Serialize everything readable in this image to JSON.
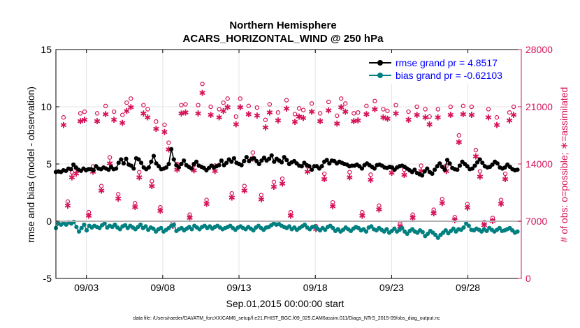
{
  "chart_data": {
    "type": "line",
    "title": "Northern Hemisphere",
    "subtitle": "ACARS_HORIZONTAL_WIND @ 250 hPa",
    "xlabel": "Sep.01,2015 00:00:00 start",
    "ylabel_left": "rmse and bias (model - observation)",
    "ylabel_right": "# of obs: o=possible; ∗=assimilated",
    "footnote": "data file: /Users/raeder/DAI/ATM_forcXX/CAM6_setup/f.e21.FHIST_BGC.f09_025.CAM6assim.011/Diags_NTrS_2015-09/obs_diag_output.nc",
    "x_range_days": [
      1,
      31.5
    ],
    "ylim_left": [
      -5,
      15
    ],
    "ylim_right": [
      0,
      28000
    ],
    "x_ticks": [
      {
        "day": 3,
        "label": "09/03"
      },
      {
        "day": 8,
        "label": "09/08"
      },
      {
        "day": 13,
        "label": "09/13"
      },
      {
        "day": 18,
        "label": "09/18"
      },
      {
        "day": 23,
        "label": "09/23"
      },
      {
        "day": 28,
        "label": "09/28"
      }
    ],
    "y_ticks_left": [
      "-5",
      "0",
      "5",
      "10",
      "15"
    ],
    "y_ticks_right": [
      "0",
      "7000",
      "14000",
      "21000",
      "28000"
    ],
    "grid": true,
    "legend_position": "top-right",
    "series": [
      {
        "name": "rmse grand pr = 4.8517",
        "color": "#000000",
        "axis": "left",
        "values": [
          4.3,
          4.35,
          4.3,
          4.45,
          4.4,
          4.6,
          4.55,
          4.95,
          4.7,
          4.5,
          4.4,
          4.6,
          4.45,
          4.55,
          4.55,
          4.45,
          4.8,
          4.6,
          4.55,
          4.7,
          4.6,
          4.5,
          4.75,
          4.55,
          4.6,
          5.1,
          5.4,
          5.05,
          5.45,
          4.95,
          4.85,
          4.6,
          5.5,
          5.4,
          5.1,
          4.7,
          4.55,
          4.7,
          5.2,
          5.7,
          5.05,
          4.8,
          4.55,
          4.6,
          4.7,
          5.0,
          6.3,
          5.4,
          4.9,
          4.7,
          5.0,
          5.3,
          4.9,
          4.75,
          4.6,
          5.0,
          5.2,
          4.85,
          4.75,
          4.65,
          4.45,
          4.65,
          4.85,
          4.7,
          4.8,
          4.9,
          5.3,
          4.9,
          5.1,
          5.4,
          5.2,
          5.5,
          5.1,
          5.0,
          4.9,
          5.25,
          5.6,
          5.25,
          5.45,
          5.5,
          5.25,
          5.0,
          5.3,
          5.55,
          5.3,
          5.45,
          5.75,
          5.2,
          5.45,
          5.3,
          5.15,
          5.6,
          5.35,
          5.0,
          5.15,
          5.25,
          5.05,
          4.85,
          4.8,
          5.1,
          4.9,
          4.8,
          4.5,
          4.8,
          4.8,
          4.6,
          4.8,
          5.2,
          5.35,
          5.05,
          5.3,
          5.25,
          5.05,
          5.2,
          5.1,
          5.0,
          4.95,
          4.8,
          4.85,
          4.85,
          4.95,
          4.8,
          4.6,
          4.9,
          5.05,
          4.9,
          4.75,
          4.6,
          4.9,
          4.95,
          4.85,
          4.7,
          4.65,
          4.75,
          4.7,
          4.5,
          4.7,
          4.8,
          4.85,
          4.75,
          4.6,
          4.45,
          4.3,
          4.5,
          4.2,
          4.1,
          4.0,
          4.35,
          4.6,
          4.3,
          4.15,
          4.5,
          4.8,
          5.05,
          4.75,
          4.5,
          5.35,
          5.05,
          4.65,
          4.55,
          4.5,
          4.85,
          5.2,
          5.0,
          4.8,
          4.55,
          4.6,
          4.85,
          5.15,
          5.4,
          5.1,
          4.8,
          4.7,
          4.75,
          4.95,
          5.2,
          5.05,
          4.7,
          4.6,
          4.7,
          4.95,
          4.75,
          4.55,
          4.45,
          4.5
        ]
      },
      {
        "name": "bias grand pr = -0.62103",
        "color": "#008080",
        "axis": "left",
        "values": [
          -0.6,
          -0.2,
          -0.3,
          -0.15,
          -0.3,
          -0.1,
          -0.2,
          -0.05,
          -0.5,
          -0.9,
          -0.6,
          -0.3,
          -0.8,
          -0.4,
          -0.55,
          -0.4,
          -0.5,
          -0.6,
          -0.35,
          -0.2,
          -0.55,
          -0.4,
          -0.5,
          -0.3,
          -0.55,
          -0.7,
          -0.45,
          -0.35,
          -0.6,
          -0.4,
          -0.55,
          -0.7,
          -0.5,
          -0.3,
          -0.6,
          -0.45,
          -0.75,
          -0.55,
          -0.65,
          -0.9,
          -0.7,
          -0.6,
          -0.9,
          -0.75,
          -0.6,
          -0.4,
          -0.3,
          -0.85,
          -0.7,
          -0.6,
          -0.8,
          -0.65,
          -0.5,
          -0.7,
          -0.4,
          -0.55,
          -0.7,
          -0.5,
          -0.4,
          -0.6,
          -0.45,
          -0.65,
          -0.5,
          -0.4,
          -0.55,
          -0.7,
          -0.6,
          -0.5,
          -0.4,
          -0.6,
          -0.75,
          -0.55,
          -0.45,
          -0.6,
          -0.7,
          -0.5,
          -0.65,
          -0.8,
          -0.55,
          -0.4,
          -0.6,
          -0.75,
          -0.55,
          -0.5,
          -0.35,
          -0.2,
          -0.3,
          -0.25,
          -0.4,
          -0.5,
          -0.6,
          -0.45,
          -0.7,
          -0.55,
          -0.75,
          -0.6,
          -0.45,
          -0.3,
          -0.55,
          -0.7,
          -0.5,
          -0.45,
          -0.65,
          -0.8,
          -0.6,
          -0.75,
          -0.5,
          -0.4,
          -0.6,
          -0.85,
          -0.7,
          -0.9,
          -0.75,
          -0.55,
          -0.7,
          -0.85,
          -0.65,
          -0.5,
          -0.6,
          -0.8,
          -0.7,
          -0.9,
          -0.55,
          -0.45,
          -0.7,
          -0.8,
          -0.6,
          -0.75,
          -0.9,
          -0.7,
          -1.0,
          -0.85,
          -0.65,
          -0.9,
          -0.75,
          -0.6,
          -0.9,
          -1.1,
          -0.85,
          -0.7,
          -0.9,
          -1.0,
          -0.8,
          -0.95,
          -1.3,
          -1.1,
          -0.85,
          -1.0,
          -1.2,
          -1.45,
          -1.2,
          -1.0,
          -0.8,
          -1.05,
          -0.85,
          -0.65,
          -0.9,
          -0.7,
          -0.75,
          -0.55,
          -0.2,
          -0.4,
          -0.75,
          -0.8,
          -0.65,
          -0.75,
          -0.9,
          -0.7,
          -0.85,
          -0.6,
          -0.75,
          -0.9,
          -0.75,
          -0.6,
          -0.85,
          -0.8,
          -0.7,
          -0.6,
          -0.8,
          -1.0,
          -0.9
        ]
      }
    ],
    "obs_counts": {
      "color": "#D6135A",
      "axis": "right",
      "possible": [
        19700,
        9400,
        13000,
        13500,
        20200,
        20400,
        8100,
        13700,
        20200,
        11300,
        21100,
        14800,
        20400,
        10300,
        20000,
        21500,
        22000,
        9200,
        13000,
        21200,
        20700,
        11900,
        19200,
        8700,
        18800,
        16600,
        6800,
        14000,
        21200,
        21300,
        7800,
        13900,
        21200,
        23800,
        9600,
        21000,
        13800,
        20700,
        21500,
        22000,
        10400,
        19800,
        22000,
        11300,
        21100,
        15400,
        20900,
        10200,
        19400,
        21300,
        11800,
        20300,
        12200,
        21800,
        8100,
        20100,
        20800,
        20600,
        13700,
        21400,
        6400,
        20200,
        12800,
        21600,
        9300,
        19900,
        22000,
        21400,
        13000,
        20200,
        20300,
        8100,
        21100,
        12700,
        21700,
        8900,
        20700,
        20500,
        13600,
        21200,
        6700,
        13300,
        20400,
        7800,
        21000,
        13800,
        20700,
        19800,
        8400,
        20700,
        9700,
        13800,
        21000,
        7500,
        17500,
        21100,
        9100,
        21000,
        15700,
        13100,
        6900,
        20700,
        7400,
        19700,
        9600,
        12800,
        20300,
        21000
      ]
    }
  },
  "legend": {
    "rmse": "rmse grand pr = 4.8517",
    "bias": "bias grand pr = -0.62103"
  }
}
